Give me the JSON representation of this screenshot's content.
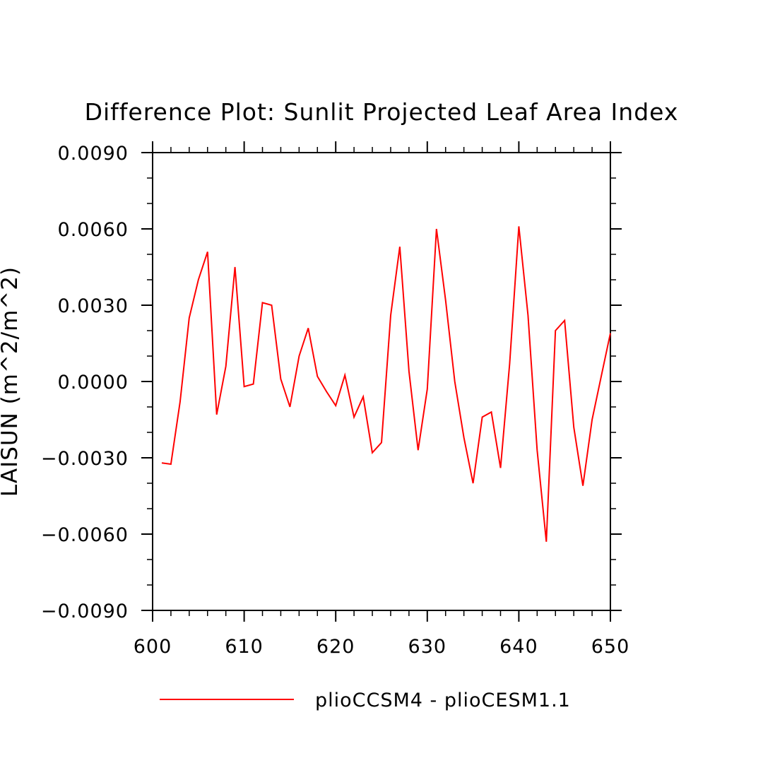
{
  "chart_data": {
    "type": "line",
    "title": "Difference Plot: Sunlit Projected Leaf Area Index",
    "xlabel": "",
    "ylabel": "LAISUN   (m^2/m^2)",
    "xlim": [
      600,
      650
    ],
    "ylim": [
      -0.009,
      0.009
    ],
    "x_ticks": [
      "600",
      "610",
      "620",
      "630",
      "640",
      "650"
    ],
    "y_ticks": [
      "-0.0090",
      "-0.0060",
      "-0.0030",
      "0.0000",
      "0.0030",
      "0.0060",
      "0.0090"
    ],
    "grid": false,
    "legend_position": "bottom",
    "series": [
      {
        "name": "plioCCSM4 - plioCESM1.1",
        "color": "#ff0000",
        "x": [
          601,
          602,
          603,
          604,
          605,
          606,
          607,
          608,
          609,
          610,
          611,
          612,
          613,
          614,
          615,
          616,
          617,
          618,
          619,
          620,
          621,
          622,
          623,
          624,
          625,
          626,
          627,
          628,
          629,
          630,
          631,
          632,
          633,
          634,
          635,
          636,
          637,
          638,
          639,
          640,
          641,
          642,
          643,
          644,
          645,
          646,
          647,
          648,
          649,
          650
        ],
        "values": [
          -0.0032,
          -0.00325,
          -0.0008,
          0.0025,
          0.004,
          0.0051,
          -0.0013,
          0.0006,
          0.0045,
          -0.0002,
          -0.0001,
          0.0031,
          0.003,
          0.0001,
          -0.001,
          0.001,
          0.0021,
          0.0002,
          -0.0004,
          -0.00095,
          0.00025,
          -0.0014,
          -0.0006,
          -0.0028,
          -0.0024,
          0.0026,
          0.0053,
          0.0004,
          -0.0027,
          -0.0003,
          0.006,
          0.0032,
          0.0,
          -0.0022,
          -0.004,
          -0.0014,
          -0.0012,
          -0.0034,
          0.0007,
          0.0061,
          0.0026,
          -0.0027,
          -0.0063,
          0.002,
          0.0024,
          -0.0018,
          -0.0041,
          -0.0015,
          0.0002,
          0.0019
        ]
      }
    ]
  }
}
